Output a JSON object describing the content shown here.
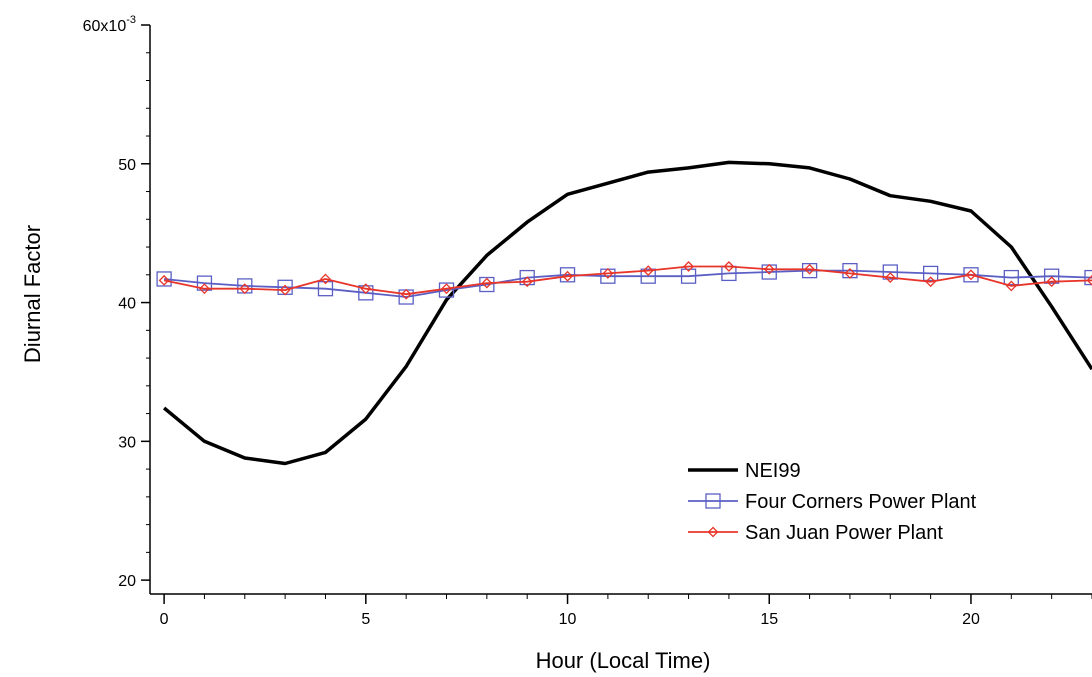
{
  "chart_data": {
    "type": "line",
    "xlabel": "Hour (Local Time)",
    "ylabel": "Diurnal Factor",
    "xlim": [
      -0.3,
      23
    ],
    "ylim": [
      0.019,
      0.06
    ],
    "x_ticks": [
      0,
      5,
      10,
      15,
      20
    ],
    "x_minor_step": 1,
    "y_ticks": [
      0.02,
      0.03,
      0.04,
      0.05,
      0.06
    ],
    "y_tick_labels": [
      "20",
      "30",
      "40",
      "50",
      "60x10"
    ],
    "y_scale_exponent": "-3",
    "y_minor_step": 0.002,
    "grid": false,
    "legend_position": "bottom-right",
    "x": [
      0,
      1,
      2,
      3,
      4,
      5,
      6,
      7,
      8,
      9,
      10,
      11,
      12,
      13,
      14,
      15,
      16,
      17,
      18,
      19,
      20,
      21,
      22,
      23
    ],
    "series": [
      {
        "name": "NEI99",
        "color": "#000000",
        "marker": "none",
        "values": [
          0.0324,
          0.03,
          0.0288,
          0.0284,
          0.0292,
          0.0316,
          0.0354,
          0.0402,
          0.0434,
          0.0458,
          0.0478,
          0.0486,
          0.0494,
          0.0497,
          0.0501,
          0.05,
          0.0497,
          0.0489,
          0.0477,
          0.0473,
          0.0466,
          0.044,
          0.0397,
          0.0352
        ]
      },
      {
        "name": "Four Corners Power Plant",
        "color": "#5b5fc4",
        "marker": "square",
        "values": [
          0.0417,
          0.0414,
          0.0412,
          0.0411,
          0.041,
          0.0407,
          0.0404,
          0.0409,
          0.0413,
          0.0418,
          0.042,
          0.0419,
          0.0419,
          0.0419,
          0.0421,
          0.0422,
          0.0423,
          0.0423,
          0.0422,
          0.0421,
          0.042,
          0.0418,
          0.0419,
          0.0418
        ]
      },
      {
        "name": "San Juan Power Plant",
        "color": "#e8352a",
        "marker": "diamond",
        "values": [
          0.0416,
          0.041,
          0.041,
          0.0409,
          0.0417,
          0.041,
          0.0406,
          0.041,
          0.0414,
          0.0415,
          0.0419,
          0.0421,
          0.0423,
          0.0426,
          0.0426,
          0.0424,
          0.0424,
          0.0421,
          0.0418,
          0.0415,
          0.042,
          0.0412,
          0.0415,
          0.0416
        ]
      }
    ]
  }
}
